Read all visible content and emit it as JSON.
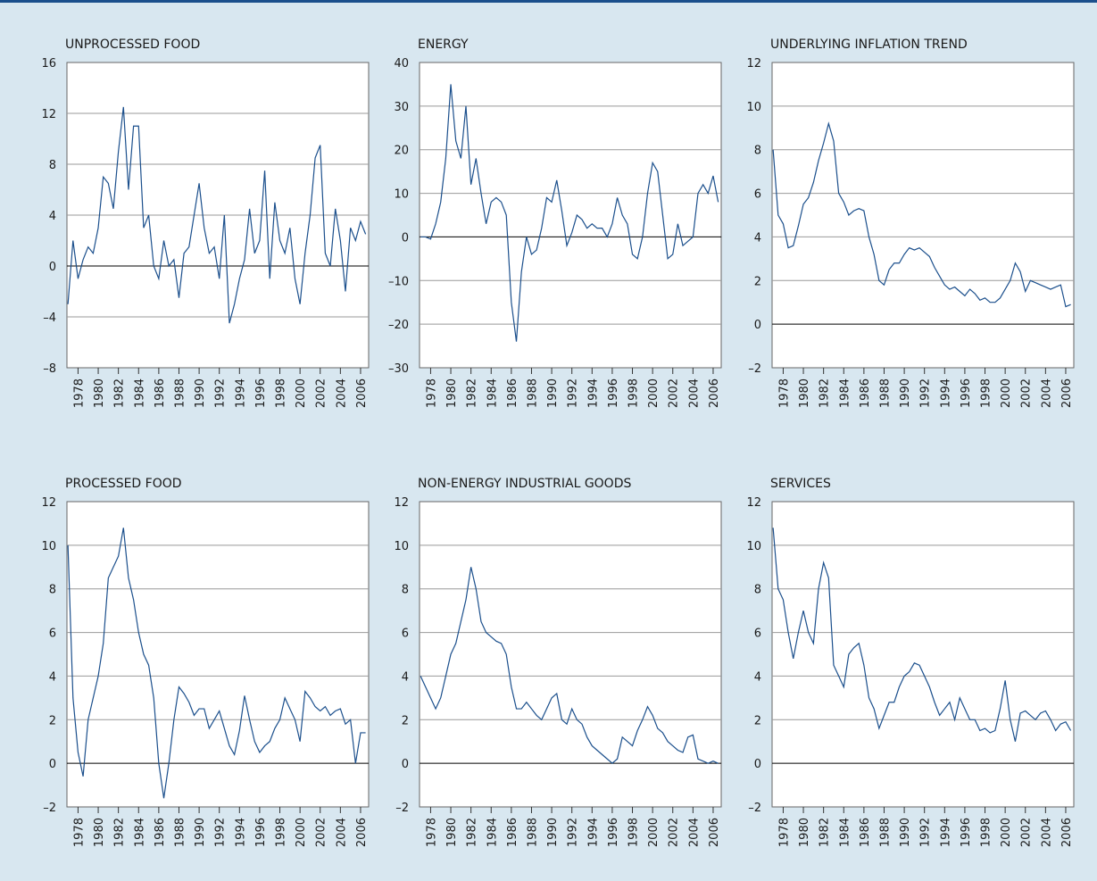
{
  "chart_data": [
    {
      "type": "line",
      "title": "UNPROCESSED FOOD",
      "color": "#1b4f8c",
      "grid": true,
      "x": [
        1977,
        1977.5,
        1978,
        1978.5,
        1979,
        1979.5,
        1980,
        1980.5,
        1981,
        1981.5,
        1982,
        1982.5,
        1983,
        1983.5,
        1984,
        1984.5,
        1985,
        1985.5,
        1986,
        1986.5,
        1987,
        1987.5,
        1988,
        1988.5,
        1989,
        1989.5,
        1990,
        1990.5,
        1991,
        1991.5,
        1992,
        1992.5,
        1993,
        1993.5,
        1994,
        1994.5,
        1995,
        1995.5,
        1996,
        1996.5,
        1997,
        1997.5,
        1998,
        1998.5,
        1999,
        1999.5,
        2000,
        2000.5,
        2001,
        2001.5,
        2002,
        2002.5,
        2003,
        2003.5,
        2004,
        2004.5,
        2005,
        2005.5,
        2006,
        2006.5
      ],
      "values": [
        -3,
        2,
        -1,
        0.5,
        1.5,
        1,
        3,
        7,
        6.5,
        4.5,
        9,
        12.5,
        6,
        11,
        11,
        3,
        4,
        0,
        -1,
        2,
        0,
        0.5,
        -2.5,
        1,
        1.5,
        4,
        6.5,
        3,
        1,
        1.5,
        -1,
        4,
        -4.5,
        -3,
        -1,
        0.5,
        4.5,
        1,
        2,
        7.5,
        -1,
        5,
        2,
        1,
        3,
        -1,
        -3,
        1,
        4,
        8.5,
        9.5,
        1,
        0,
        4.5,
        2,
        -2,
        3,
        2,
        3.5,
        2.5
      ],
      "xlim": [
        1976.9,
        2006.8
      ],
      "xticks": [
        1978,
        1980,
        1982,
        1984,
        1986,
        1988,
        1990,
        1992,
        1994,
        1996,
        1998,
        2000,
        2002,
        2004,
        2006
      ],
      "ylim": [
        -8,
        16
      ],
      "yticks": [
        {
          "value": -8,
          "label": "–8"
        },
        {
          "value": -4,
          "label": "–4"
        },
        0,
        4,
        8,
        12,
        16
      ]
    },
    {
      "type": "line",
      "title": "ENERGY",
      "color": "#1b4f8c",
      "grid": true,
      "x": [
        1977,
        1977.5,
        1978,
        1978.5,
        1979,
        1979.5,
        1980,
        1980.5,
        1981,
        1981.5,
        1982,
        1982.5,
        1983,
        1983.5,
        1984,
        1984.5,
        1985,
        1985.5,
        1986,
        1986.5,
        1987,
        1987.5,
        1988,
        1988.5,
        1989,
        1989.5,
        1990,
        1990.5,
        1991,
        1991.5,
        1992,
        1992.5,
        1993,
        1993.5,
        1994,
        1994.5,
        1995,
        1995.5,
        1996,
        1996.5,
        1997,
        1997.5,
        1998,
        1998.5,
        1999,
        1999.5,
        2000,
        2000.5,
        2001,
        2001.5,
        2002,
        2002.5,
        2003,
        2003.5,
        2004,
        2004.5,
        2005,
        2005.5,
        2006,
        2006.5
      ],
      "values": [
        0,
        0,
        -0.5,
        3,
        8,
        18,
        35,
        22,
        18,
        30,
        12,
        18,
        10,
        3,
        8,
        9,
        8,
        5,
        -15,
        -24,
        -8,
        0,
        -4,
        -3,
        2,
        9,
        8,
        13,
        6,
        -2,
        1,
        5,
        4,
        2,
        3,
        2,
        2,
        0,
        3,
        9,
        5,
        3,
        -4,
        -5,
        0,
        10,
        17,
        15,
        5,
        -5,
        -4,
        3,
        -2,
        -1,
        0,
        10,
        12,
        10,
        14,
        8
      ],
      "xlim": [
        1976.9,
        2006.8
      ],
      "xticks": [
        1978,
        1980,
        1982,
        1984,
        1986,
        1988,
        1990,
        1992,
        1994,
        1996,
        1998,
        2000,
        2002,
        2004,
        2006
      ],
      "ylim": [
        -30,
        40
      ],
      "yticks": [
        {
          "value": -30,
          "label": "–30"
        },
        {
          "value": -20,
          "label": "–20"
        },
        {
          "value": -10,
          "label": "–10"
        },
        0,
        10,
        20,
        30,
        40
      ]
    },
    {
      "type": "line",
      "title": "UNDERLYING INFLATION TREND",
      "color": "#1b4f8c",
      "grid": true,
      "x": [
        1977,
        1977.5,
        1978,
        1978.5,
        1979,
        1979.5,
        1980,
        1980.5,
        1981,
        1981.5,
        1982,
        1982.5,
        1983,
        1983.5,
        1984,
        1984.5,
        1985,
        1985.5,
        1986,
        1986.5,
        1987,
        1987.5,
        1988,
        1988.5,
        1989,
        1989.5,
        1990,
        1990.5,
        1991,
        1991.5,
        1992,
        1992.5,
        1993,
        1993.5,
        1994,
        1994.5,
        1995,
        1995.5,
        1996,
        1996.5,
        1997,
        1997.5,
        1998,
        1998.5,
        1999,
        1999.5,
        2000,
        2000.5,
        2001,
        2001.5,
        2002,
        2002.5,
        2003,
        2003.5,
        2004,
        2004.5,
        2005,
        2005.5,
        2006,
        2006.5
      ],
      "values": [
        8,
        5,
        4.6,
        3.5,
        3.6,
        4.5,
        5.5,
        5.8,
        6.5,
        7.5,
        8.3,
        9.2,
        8.4,
        6,
        5.6,
        5,
        5.2,
        5.3,
        5.2,
        4,
        3.2,
        2,
        1.8,
        2.5,
        2.8,
        2.8,
        3.2,
        3.5,
        3.4,
        3.5,
        3.3,
        3.1,
        2.6,
        2.2,
        1.8,
        1.6,
        1.7,
        1.5,
        1.3,
        1.6,
        1.4,
        1.1,
        1.2,
        1,
        1,
        1.2,
        1.6,
        2,
        2.8,
        2.4,
        1.5,
        2,
        1.9,
        1.8,
        1.7,
        1.6,
        1.7,
        1.8,
        0.8,
        0.9
      ],
      "xlim": [
        1976.9,
        2006.8
      ],
      "xticks": [
        1978,
        1980,
        1982,
        1984,
        1986,
        1988,
        1990,
        1992,
        1994,
        1996,
        1998,
        2000,
        2002,
        2004,
        2006
      ],
      "ylim": [
        -2,
        12
      ],
      "yticks": [
        {
          "value": -2,
          "label": "–2"
        },
        0,
        2,
        4,
        6,
        8,
        10,
        12
      ]
    },
    {
      "type": "line",
      "title": "PROCESSED FOOD",
      "color": "#1b4f8c",
      "grid": true,
      "x": [
        1977,
        1977.5,
        1978,
        1978.5,
        1979,
        1979.5,
        1980,
        1980.5,
        1981,
        1981.5,
        1982,
        1982.5,
        1983,
        1983.5,
        1984,
        1984.5,
        1985,
        1985.5,
        1986,
        1986.5,
        1987,
        1987.5,
        1988,
        1988.5,
        1989,
        1989.5,
        1990,
        1990.5,
        1991,
        1991.5,
        1992,
        1992.5,
        1993,
        1993.5,
        1994,
        1994.5,
        1995,
        1995.5,
        1996,
        1996.5,
        1997,
        1997.5,
        1998,
        1998.5,
        1999,
        1999.5,
        2000,
        2000.5,
        2001,
        2001.5,
        2002,
        2002.5,
        2003,
        2003.5,
        2004,
        2004.5,
        2005,
        2005.5,
        2006,
        2006.5
      ],
      "values": [
        10,
        3,
        0.5,
        -0.6,
        2,
        3,
        4,
        5.5,
        8.5,
        9,
        9.5,
        10.8,
        8.5,
        7.5,
        6,
        5,
        4.5,
        3,
        0,
        -1.6,
        0,
        2,
        3.5,
        3.2,
        2.8,
        2.2,
        2.5,
        2.5,
        1.6,
        2,
        2.4,
        1.6,
        0.8,
        0.4,
        1.5,
        3.1,
        2,
        1,
        0.5,
        0.8,
        1,
        1.6,
        2,
        3,
        2.5,
        2,
        1,
        3.3,
        3,
        2.6,
        2.4,
        2.6,
        2.2,
        2.4,
        2.5,
        1.8,
        2,
        0,
        1.4,
        1.4
      ],
      "xlim": [
        1976.9,
        2006.8
      ],
      "xticks": [
        1978,
        1980,
        1982,
        1984,
        1986,
        1988,
        1990,
        1992,
        1994,
        1996,
        1998,
        2000,
        2002,
        2004,
        2006
      ],
      "ylim": [
        -2,
        12
      ],
      "yticks": [
        {
          "value": -2,
          "label": "–2"
        },
        0,
        2,
        4,
        6,
        8,
        10,
        12
      ]
    },
    {
      "type": "line",
      "title": "NON-ENERGY INDUSTRIAL GOODS",
      "color": "#1b4f8c",
      "grid": true,
      "x": [
        1977,
        1977.5,
        1978,
        1978.5,
        1979,
        1979.5,
        1980,
        1980.5,
        1981,
        1981.5,
        1982,
        1982.5,
        1983,
        1983.5,
        1984,
        1984.5,
        1985,
        1985.5,
        1986,
        1986.5,
        1987,
        1987.5,
        1988,
        1988.5,
        1989,
        1989.5,
        1990,
        1990.5,
        1991,
        1991.5,
        1992,
        1992.5,
        1993,
        1993.5,
        1994,
        1994.5,
        1995,
        1995.5,
        1996,
        1996.5,
        1997,
        1997.5,
        1998,
        1998.5,
        1999,
        1999.5,
        2000,
        2000.5,
        2001,
        2001.5,
        2002,
        2002.5,
        2003,
        2003.5,
        2004,
        2004.5,
        2005,
        2005.5,
        2006,
        2006.5
      ],
      "values": [
        4,
        3.5,
        3,
        2.5,
        3,
        4,
        5,
        5.5,
        6.5,
        7.5,
        9,
        8,
        6.5,
        6,
        5.8,
        5.6,
        5.5,
        5,
        3.5,
        2.5,
        2.5,
        2.8,
        2.5,
        2.2,
        2,
        2.5,
        3,
        3.2,
        2,
        1.8,
        2.5,
        2,
        1.8,
        1.2,
        0.8,
        0.6,
        0.4,
        0.2,
        0,
        0.2,
        1.2,
        1,
        0.8,
        1.5,
        2,
        2.6,
        2.2,
        1.6,
        1.4,
        1,
        0.8,
        0.6,
        0.5,
        1.2,
        1.3,
        0.2,
        0.1,
        0,
        0.1,
        0
      ],
      "xlim": [
        1976.9,
        2006.8
      ],
      "xticks": [
        1978,
        1980,
        1982,
        1984,
        1986,
        1988,
        1990,
        1992,
        1994,
        1996,
        1998,
        2000,
        2002,
        2004,
        2006
      ],
      "ylim": [
        -2,
        12
      ],
      "yticks": [
        {
          "value": -2,
          "label": "–2"
        },
        0,
        2,
        4,
        6,
        8,
        10,
        12
      ]
    },
    {
      "type": "line",
      "title": "SERVICES",
      "color": "#1b4f8c",
      "grid": true,
      "x": [
        1977,
        1977.5,
        1978,
        1978.5,
        1979,
        1979.5,
        1980,
        1980.5,
        1981,
        1981.5,
        1982,
        1982.5,
        1983,
        1983.5,
        1984,
        1984.5,
        1985,
        1985.5,
        1986,
        1986.5,
        1987,
        1987.5,
        1988,
        1988.5,
        1989,
        1989.5,
        1990,
        1990.5,
        1991,
        1991.5,
        1992,
        1992.5,
        1993,
        1993.5,
        1994,
        1994.5,
        1995,
        1995.5,
        1996,
        1996.5,
        1997,
        1997.5,
        1998,
        1998.5,
        1999,
        1999.5,
        2000,
        2000.5,
        2001,
        2001.5,
        2002,
        2002.5,
        2003,
        2003.5,
        2004,
        2004.5,
        2005,
        2005.5,
        2006,
        2006.5
      ],
      "values": [
        10.8,
        8,
        7.5,
        6,
        4.8,
        6,
        7,
        6,
        5.5,
        8,
        9.2,
        8.5,
        4.5,
        4,
        3.5,
        5,
        5.3,
        5.5,
        4.5,
        3,
        2.5,
        1.6,
        2.2,
        2.8,
        2.8,
        3.5,
        4,
        4.2,
        4.6,
        4.5,
        4,
        3.5,
        2.8,
        2.2,
        2.5,
        2.8,
        2,
        3,
        2.5,
        2,
        2,
        1.5,
        1.6,
        1.4,
        1.5,
        2.5,
        3.8,
        2,
        1,
        2.3,
        2.4,
        2.2,
        2,
        2.3,
        2.4,
        2,
        1.5,
        1.8,
        1.9,
        1.5
      ],
      "xlim": [
        1976.9,
        2006.8
      ],
      "xticks": [
        1978,
        1980,
        1982,
        1984,
        1986,
        1988,
        1990,
        1992,
        1994,
        1996,
        1998,
        2000,
        2002,
        2004,
        2006
      ],
      "ylim": [
        -2,
        12
      ],
      "yticks": [
        {
          "value": -2,
          "label": "–2"
        },
        0,
        2,
        4,
        6,
        8,
        10,
        12
      ]
    }
  ]
}
